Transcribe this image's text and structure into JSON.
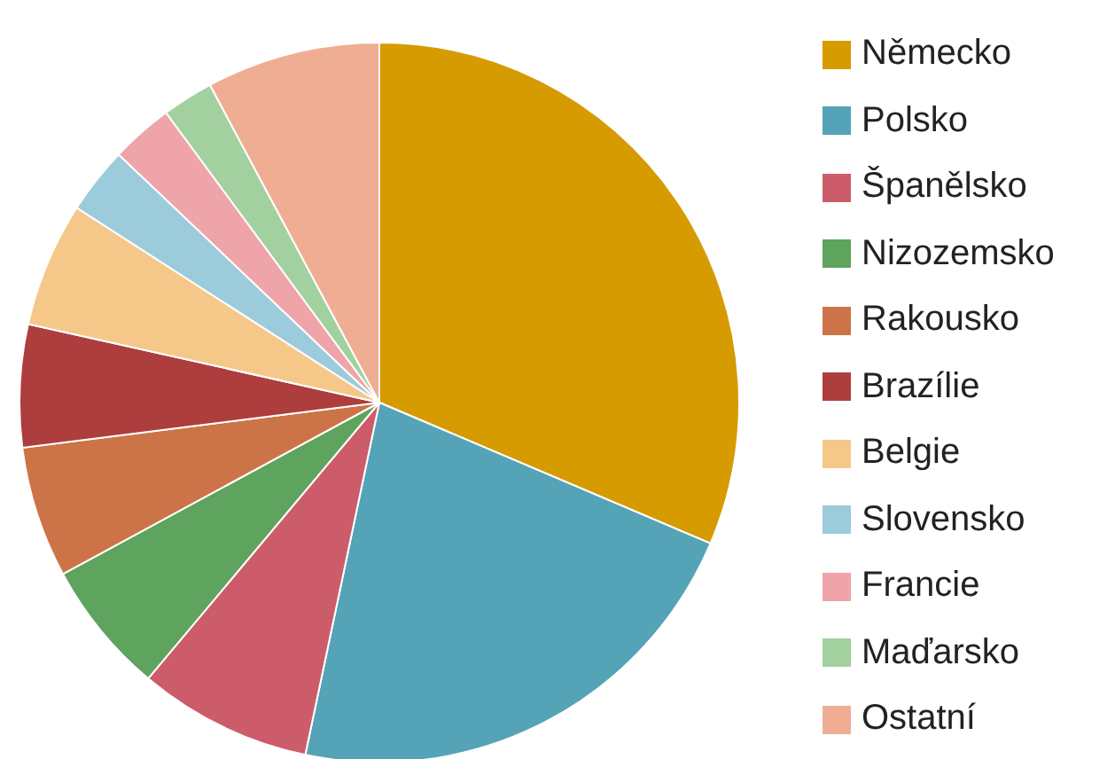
{
  "chart_data": {
    "type": "pie",
    "legend": "right",
    "categories": [
      "Německo",
      "Polsko",
      "Španělsko",
      "Nizozemsko",
      "Rakousko",
      "Brazílie",
      "Belgie",
      "Slovensko",
      "Francie",
      "Maďarsko",
      "Ostatní"
    ],
    "values": [
      31.4,
      21.9,
      7.8,
      6.0,
      5.9,
      5.5,
      5.6,
      3.0,
      2.8,
      2.3,
      7.8
    ],
    "colors": [
      "#d59b00",
      "#55a3b7",
      "#cd5c6b",
      "#5ea35e",
      "#cc7447",
      "#ae3d3d",
      "#f5c88a",
      "#9ccbdc",
      "#eea4a9",
      "#a2d09e",
      "#efae93"
    ]
  }
}
